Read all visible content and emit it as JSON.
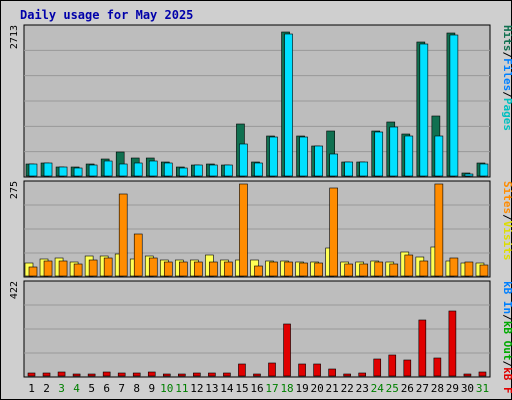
{
  "page_title": "Daily usage for May 2025",
  "colors": {
    "frame": "#cfcfcf",
    "plot": "#bdbdbd",
    "grid": "#999999",
    "hits": "#107050",
    "files": "#00e0ff",
    "pages": "#00c0c0",
    "visits": "#ffff55",
    "sites": "#ff8c00",
    "kbin": "#0080ff",
    "kbout": "#00aa00",
    "kbf": "#e00000",
    "weekend": "#008000",
    "title": "#0000aa"
  },
  "chart_data": [
    {
      "type": "bar",
      "panel": "hits-files-pages",
      "ymax_label": "2713",
      "ylim": [
        0,
        2713
      ],
      "legend": {
        "pages": "Pages",
        "sep1": "/",
        "files": "Files",
        "sep2": "/",
        "hits": "Hits"
      },
      "categories": [
        "1",
        "2",
        "3",
        "4",
        "5",
        "6",
        "7",
        "8",
        "9",
        "10",
        "11",
        "12",
        "13",
        "14",
        "15",
        "16",
        "17",
        "18",
        "19",
        "20",
        "21",
        "22",
        "23",
        "24",
        "25",
        "26",
        "27",
        "28",
        "29",
        "30",
        "31"
      ],
      "series": [
        {
          "name": "Hits",
          "values": [
            225,
            240,
            170,
            160,
            210,
            310,
            440,
            330,
            330,
            260,
            160,
            200,
            220,
            200,
            940,
            255,
            720,
            2613,
            720,
            550,
            810,
            260,
            260,
            810,
            980,
            760,
            2423,
            1080,
            2593,
            50,
            230
          ]
        },
        {
          "name": "Files",
          "values": [
            215,
            230,
            160,
            150,
            200,
            280,
            210,
            230,
            280,
            240,
            150,
            190,
            200,
            190,
            570,
            240,
            700,
            2570,
            700,
            540,
            400,
            255,
            250,
            790,
            880,
            720,
            2383,
            720,
            2553,
            45,
            215
          ]
        }
      ]
    },
    {
      "type": "bar",
      "panel": "visits-sites",
      "ymax_label": "275",
      "ylim": [
        0,
        275
      ],
      "legend": {
        "visits": "Visits",
        "sep1": "/",
        "sites": "Sites"
      },
      "categories": [
        "1",
        "2",
        "3",
        "4",
        "5",
        "6",
        "7",
        "8",
        "9",
        "10",
        "11",
        "12",
        "13",
        "14",
        "15",
        "16",
        "17",
        "18",
        "19",
        "20",
        "21",
        "22",
        "23",
        "24",
        "25",
        "26",
        "27",
        "28",
        "29",
        "30",
        "31"
      ],
      "series": [
        {
          "name": "Visits",
          "values": [
            38,
            50,
            52,
            42,
            58,
            58,
            65,
            50,
            58,
            48,
            46,
            46,
            60,
            46,
            46,
            46,
            43,
            43,
            41,
            40,
            83,
            41,
            41,
            45,
            41,
            70,
            56,
            86,
            43,
            38,
            38
          ]
        },
        {
          "name": "Sites",
          "values": [
            27,
            45,
            45,
            35,
            48,
            54,
            240,
            122,
            52,
            42,
            40,
            42,
            42,
            42,
            270,
            30,
            40,
            40,
            38,
            38,
            258,
            34,
            34,
            40,
            34,
            61,
            43,
            268,
            53,
            42,
            33
          ]
        }
      ]
    },
    {
      "type": "bar",
      "panel": "kbf-kbout-kbin",
      "ymax_label": "422",
      "ylim": [
        0,
        422
      ],
      "legend": {
        "kbf": "kB F",
        "sep1": "/",
        "kbout": "kB Out",
        "sep2": "/",
        "kbin": "kB In"
      },
      "categories": [
        "1",
        "2",
        "3",
        "4",
        "5",
        "6",
        "7",
        "8",
        "9",
        "10",
        "11",
        "12",
        "13",
        "14",
        "15",
        "16",
        "17",
        "18",
        "19",
        "20",
        "21",
        "22",
        "23",
        "24",
        "25",
        "26",
        "27",
        "28",
        "29",
        "30",
        "31"
      ],
      "series": [
        {
          "name": "kB F",
          "values": [
            15,
            15,
            20,
            10,
            10,
            20,
            15,
            15,
            20,
            10,
            10,
            15,
            15,
            15,
            55,
            10,
            60,
            232,
            55,
            55,
            30,
            10,
            15,
            75,
            95,
            70,
            250,
            80,
            290,
            10,
            20
          ]
        }
      ]
    }
  ],
  "x_axis": {
    "labels": [
      "1",
      "2",
      "3",
      "4",
      "5",
      "6",
      "7",
      "8",
      "9",
      "10",
      "11",
      "12",
      "13",
      "14",
      "15",
      "16",
      "17",
      "18",
      "19",
      "20",
      "21",
      "22",
      "23",
      "24",
      "25",
      "26",
      "27",
      "28",
      "29",
      "30",
      "31"
    ],
    "weekend_days": [
      "3",
      "4",
      "10",
      "11",
      "17",
      "18",
      "24",
      "25",
      "31"
    ]
  }
}
